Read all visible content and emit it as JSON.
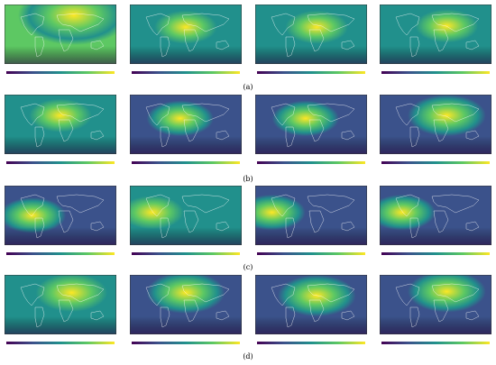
{
  "figure": {
    "rows": [
      {
        "label": "(a)"
      },
      {
        "label": "(b)"
      },
      {
        "label": "(c)"
      },
      {
        "label": "(d)"
      }
    ]
  },
  "colormap": [
    "#440154",
    "#3b528b",
    "#21908c",
    "#5dc863",
    "#fde725"
  ]
}
